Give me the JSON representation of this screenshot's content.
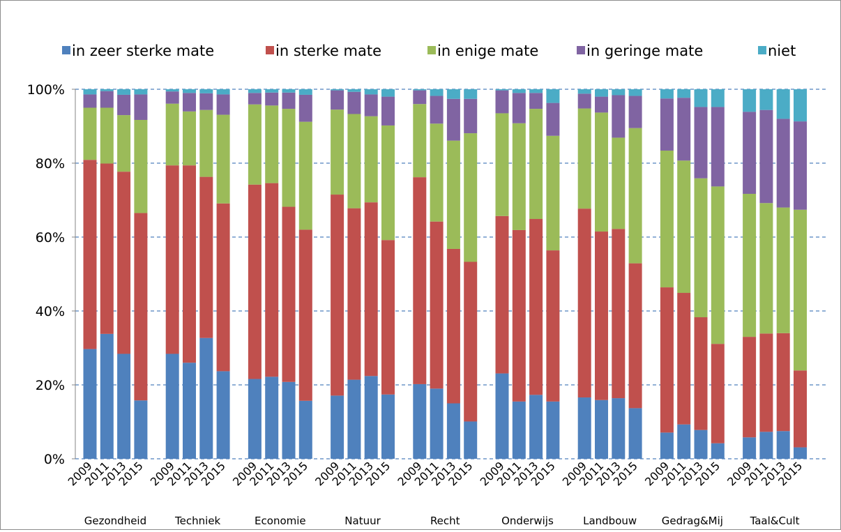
{
  "chart_data": {
    "type": "bar",
    "stacked": true,
    "percent": true,
    "legend_position": "top",
    "grid": "horizontal dashed",
    "ylim": [
      0,
      100
    ],
    "y_ticks": [
      "0%",
      "20%",
      "40%",
      "60%",
      "80%",
      "100%"
    ],
    "years": [
      "2009",
      "2011",
      "2013",
      "2015"
    ],
    "groups": [
      "Gezondheid",
      "Techniek",
      "Economie",
      "Natuur",
      "Recht",
      "Onderwijs",
      "Landbouw",
      "Gedrag&Mij",
      "Taal&Cult"
    ],
    "series": [
      {
        "name": "in zeer sterke mate",
        "color": "#4f81bd",
        "values": [
          [
            29.7,
            33.8,
            28.4,
            15.8
          ],
          [
            28.4,
            26.0,
            32.7,
            23.7
          ],
          [
            21.6,
            22.2,
            20.8,
            15.7
          ],
          [
            17.1,
            21.4,
            22.4,
            17.4
          ],
          [
            20.2,
            19.0,
            15.0,
            10.1
          ],
          [
            23.1,
            15.5,
            17.3,
            15.5
          ],
          [
            16.6,
            15.9,
            16.4,
            13.7
          ],
          [
            7.1,
            9.3,
            7.8,
            4.2
          ],
          [
            5.8,
            7.3,
            7.5,
            3.1
          ]
        ]
      },
      {
        "name": "in sterke mate",
        "color": "#c0504d",
        "values": [
          [
            51.2,
            46.1,
            49.3,
            50.7
          ],
          [
            51.0,
            53.4,
            43.6,
            45.4
          ],
          [
            52.6,
            52.4,
            47.4,
            46.3
          ],
          [
            54.4,
            46.4,
            47.0,
            41.8
          ],
          [
            56.0,
            45.2,
            41.8,
            43.2
          ],
          [
            42.6,
            46.4,
            47.6,
            40.9
          ],
          [
            51.1,
            45.6,
            45.8,
            39.2
          ],
          [
            39.3,
            35.6,
            30.5,
            26.9
          ],
          [
            27.2,
            26.6,
            26.5,
            20.8
          ]
        ]
      },
      {
        "name": "in enige mate",
        "color": "#9bbb59",
        "values": [
          [
            14.1,
            15.1,
            15.3,
            25.2
          ],
          [
            16.7,
            14.6,
            18.1,
            24.0
          ],
          [
            21.7,
            21.0,
            26.5,
            29.2
          ],
          [
            23.0,
            25.5,
            23.3,
            31.0
          ],
          [
            19.8,
            26.5,
            29.3,
            34.8
          ],
          [
            27.8,
            28.9,
            29.8,
            31.0
          ],
          [
            27.1,
            32.2,
            24.7,
            36.6
          ],
          [
            37.0,
            35.8,
            37.6,
            42.6
          ],
          [
            38.7,
            35.3,
            34.0,
            43.5
          ]
        ]
      },
      {
        "name": "in geringe mate",
        "color": "#8064a2",
        "values": [
          [
            3.6,
            4.5,
            5.5,
            6.9
          ],
          [
            3.3,
            5.0,
            4.5,
            5.5
          ],
          [
            3.1,
            3.5,
            4.4,
            7.3
          ],
          [
            5.2,
            6.0,
            5.9,
            7.8
          ],
          [
            3.7,
            7.5,
            11.3,
            9.3
          ],
          [
            6.2,
            8.2,
            4.3,
            8.9
          ],
          [
            4.0,
            4.3,
            11.5,
            8.7
          ],
          [
            14.1,
            17.0,
            19.3,
            21.5
          ],
          [
            22.2,
            25.2,
            24.0,
            23.9
          ]
        ]
      },
      {
        "name": "niet",
        "color": "#4bacc6",
        "values": [
          [
            1.4,
            0.5,
            1.5,
            1.4
          ],
          [
            0.6,
            1.0,
            1.1,
            1.4
          ],
          [
            1.0,
            0.9,
            0.9,
            1.5
          ],
          [
            0.3,
            0.7,
            1.4,
            2.0
          ],
          [
            0.3,
            1.8,
            2.6,
            2.6
          ],
          [
            0.3,
            1.0,
            1.0,
            3.7
          ],
          [
            1.2,
            2.0,
            1.6,
            1.8
          ],
          [
            2.5,
            2.3,
            4.8,
            4.8
          ],
          [
            6.1,
            5.6,
            8.0,
            8.7
          ]
        ]
      }
    ]
  }
}
